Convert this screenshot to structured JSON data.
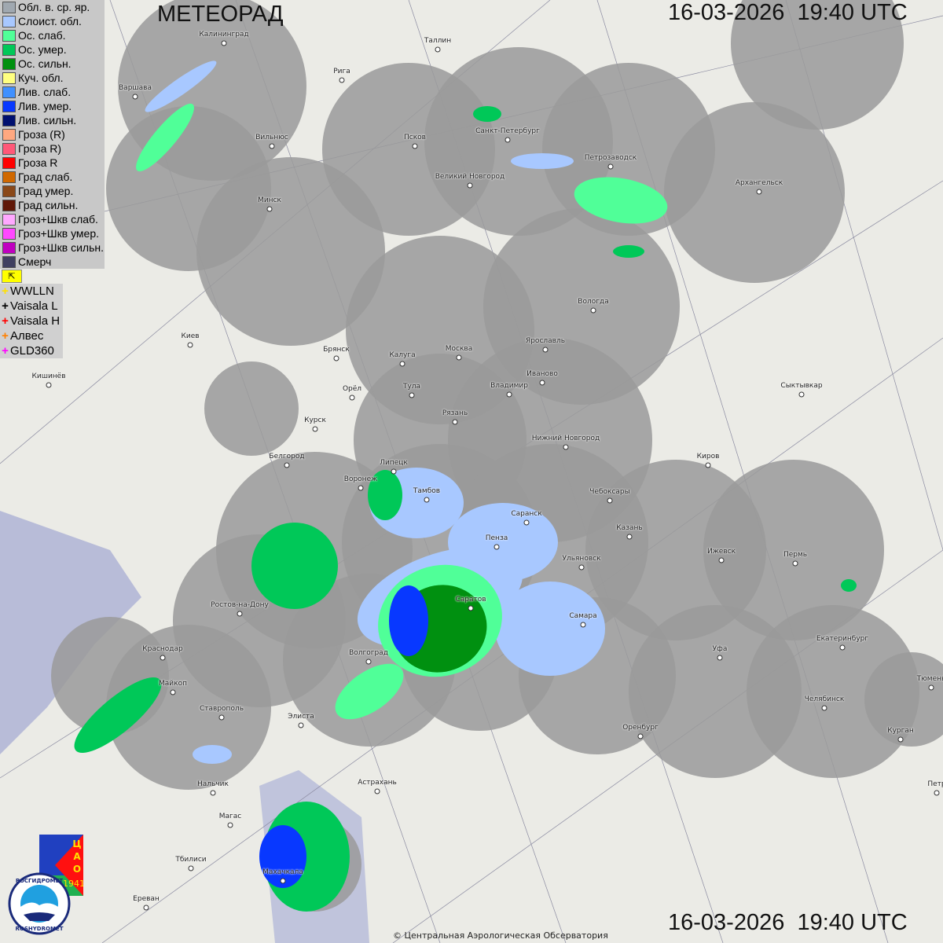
{
  "header": {
    "title": "МЕТЕОРАД",
    "datetime_top": "16-03-2026  19:40 UTC",
    "datetime_bottom": "16-03-2026  19:40 UTC"
  },
  "legend": [
    {
      "label": "Обл. в. ср. яр.",
      "color": "#a0a8b0"
    },
    {
      "label": "Слоист. обл.",
      "color": "#a8c8ff"
    },
    {
      "label": "Ос. слаб.",
      "color": "#50ff98"
    },
    {
      "label": "Ос. умер.",
      "color": "#00c858"
    },
    {
      "label": "Ос. сильн.",
      "color": "#009010"
    },
    {
      "label": "Куч. обл.",
      "color": "#ffff80"
    },
    {
      "label": "Лив. слаб.",
      "color": "#4090ff"
    },
    {
      "label": "Лив. умер.",
      "color": "#0838ff"
    },
    {
      "label": "Лив. сильн.",
      "color": "#001070"
    },
    {
      "label": "Гроза (R)",
      "color": "#ffa880"
    },
    {
      "label": "Гроза R)",
      "color": "#ff5878"
    },
    {
      "label": "Гроза R",
      "color": "#ff0000"
    },
    {
      "label": "Град слаб.",
      "color": "#d06800"
    },
    {
      "label": "Град умер.",
      "color": "#8a4818"
    },
    {
      "label": "Град сильн.",
      "color": "#601808"
    },
    {
      "label": "Гроз+Шкв слаб.",
      "color": "#ffa8ff"
    },
    {
      "label": "Гроз+Шкв умер.",
      "color": "#ff48ff"
    },
    {
      "label": "Гроз+Шкв сильн.",
      "color": "#c000c0"
    },
    {
      "label": "Смерч",
      "color": "#404060"
    }
  ],
  "flag_icon": "flag-icon",
  "lightning": [
    {
      "label": "WWLLN",
      "color": "#ffe000"
    },
    {
      "label": "Vaisala L",
      "color": "#000000"
    },
    {
      "label": "Vaisala H",
      "color": "#ff0000"
    },
    {
      "label": "Алвес",
      "color": "#ff8000"
    },
    {
      "label": "GLD360",
      "color": "#ff00ff"
    }
  ],
  "cities": [
    "Калининград",
    "Таллин",
    "Рига",
    "Варшава",
    "Вильнюс",
    "Псков",
    "Санкт-Петербург",
    "Петрозаводск",
    "Великий Новгород",
    "Архангельск",
    "Минск",
    "Вологда",
    "Киев",
    "Брянск",
    "Калуга",
    "Москва",
    "Ярославль",
    "Иваново",
    "Кишинёв",
    "Орёл",
    "Тула",
    "Владимир",
    "Сыктывкар",
    "Рязань",
    "Курск",
    "Нижний Новгород",
    "Белгород",
    "Липецк",
    "Киров",
    "Воронеж",
    "Тамбов",
    "Чебоксары",
    "Саранск",
    "Казань",
    "Пенза",
    "Ульяновск",
    "Ижевск",
    "Пермь",
    "Ростов-на-Дону",
    "Саратов",
    "Самара",
    "Краснодар",
    "Волгоград",
    "Уфа",
    "Екатеринбург",
    "Майкоп",
    "Тюмень",
    "Ставрополь",
    "Элиста",
    "Челябинск",
    "Оренбург",
    "Курган",
    "Астрахань",
    "Нальчик",
    "Магас",
    "Тбилиси",
    "Махачкала",
    "Ереван",
    "Петр"
  ],
  "logos": {
    "cao": "ЦАО 1941",
    "roshydromet": "РОСГИДРОМЕТ ROSHYDROMET"
  },
  "copyright": "© Центральная Аэрологическая Обсерватория"
}
